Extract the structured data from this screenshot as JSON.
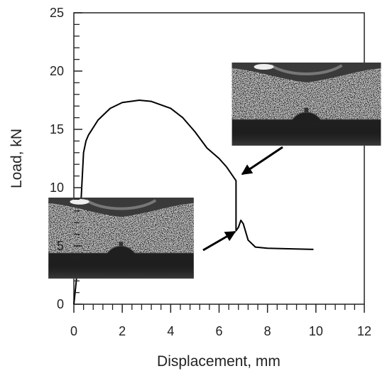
{
  "chart_data": {
    "type": "line",
    "x_label": "Displacement, mm",
    "y_label": "Load, kN",
    "x": [
      0,
      0.1,
      0.2,
      0.3,
      0.4,
      0.5,
      0.6,
      1.0,
      1.5,
      2.0,
      2.7,
      3.2,
      4.0,
      4.5,
      5.0,
      5.5,
      6.0,
      6.3,
      6.7,
      6.7,
      6.8,
      6.9,
      7.0,
      7.2,
      7.5,
      8.0,
      9.0,
      9.9
    ],
    "values": [
      0,
      2,
      5,
      9,
      13,
      14,
      14.5,
      15.8,
      16.8,
      17.3,
      17.5,
      17.4,
      16.8,
      16.0,
      14.8,
      13.4,
      12.5,
      11.8,
      10.6,
      6.3,
      6.6,
      7.2,
      6.9,
      5.5,
      4.9,
      4.8,
      4.75,
      4.7
    ],
    "color": "#000000",
    "xlim": [
      0,
      12
    ],
    "xticks": [
      0,
      2,
      4,
      6,
      8,
      10,
      12
    ],
    "xminorticks": [
      0.4,
      0.8,
      1.2,
      1.6,
      2.4,
      2.8,
      3.2,
      3.6,
      4.4,
      4.8,
      5.2,
      5.6,
      6.4,
      6.8,
      7.2,
      7.6,
      8.4,
      8.8,
      9.2,
      9.6,
      10.4,
      10.8,
      11.2,
      11.6
    ],
    "ylim": [
      0,
      25
    ],
    "yticks": [
      0,
      5,
      10,
      15,
      20,
      25
    ],
    "yminorticks": [
      1,
      2,
      3,
      4,
      6,
      7,
      8,
      9,
      11,
      12,
      13,
      14,
      16,
      17,
      18,
      19,
      21,
      22,
      23,
      24
    ],
    "grid": false
  }
}
